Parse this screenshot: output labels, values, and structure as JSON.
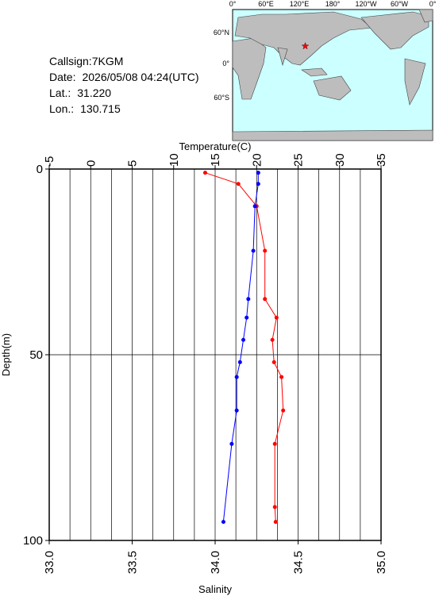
{
  "info": [
    {
      "label": "Callsign:7KGM"
    },
    {
      "label": "Date:",
      "value": "2026/05/08 04:24(UTC)"
    },
    {
      "label": "Lat.:",
      "value": "31.220"
    },
    {
      "label": "Lon.:",
      "value": "130.715"
    }
  ],
  "map": {
    "lon_labels": [
      "0°",
      "60°E",
      "120°E",
      "180°",
      "120°W",
      "60°W",
      "0°"
    ],
    "lat_labels": [
      "60°N",
      "0°",
      "60°S"
    ]
  },
  "chart_data": {
    "type": "line",
    "x_label": "Temperature(C)",
    "x2_label": "Salinity",
    "y_label": "Depth(m)",
    "xlim": [
      -5,
      35
    ],
    "xticks": [
      -5,
      0,
      5,
      10,
      15,
      20,
      25,
      30,
      35
    ],
    "x2lim": [
      33,
      35
    ],
    "x2ticks": [
      {
        "value": 33,
        "label": "33.0"
      },
      {
        "value": 33.5,
        "label": "33.5"
      },
      {
        "value": 34,
        "label": "34.0"
      },
      {
        "value": 34.5,
        "label": "34.5"
      },
      {
        "value": 35,
        "label": "35.0"
      }
    ],
    "ylim": [
      0,
      100
    ],
    "y_inverted": true,
    "yticks": [
      0,
      50,
      100
    ],
    "xgrid": [
      -2.5,
      0,
      2.5,
      5,
      7.5,
      10,
      12.5,
      15,
      17.5,
      20,
      22.5,
      25,
      27.5,
      30,
      32.5
    ],
    "ygrid": [
      50
    ],
    "series": [
      {
        "axis": "x",
        "color": "#ff0000",
        "depth": [
          1,
          4,
          10,
          22,
          35,
          40,
          46,
          52,
          56,
          65,
          74,
          91,
          95
        ],
        "values": [
          13.8,
          17.8,
          20.0,
          21.0,
          21.0,
          22.4,
          21.9,
          22.1,
          23.0,
          23.2,
          22.2,
          22.2,
          22.3
        ]
      },
      {
        "axis": "x2",
        "color": "#0000ff",
        "depth": [
          1,
          4,
          10,
          22,
          35,
          40,
          46,
          52,
          56,
          65,
          74,
          95
        ],
        "values": [
          34.26,
          34.26,
          34.24,
          34.23,
          34.2,
          34.19,
          34.17,
          34.15,
          34.13,
          34.13,
          34.1,
          34.05
        ]
      }
    ]
  }
}
